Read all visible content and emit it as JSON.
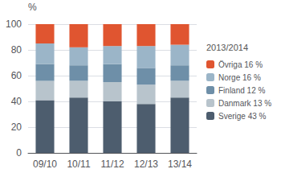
{
  "chart_data": {
    "type": "bar",
    "stacked": true,
    "categories": [
      "09/10",
      "10/11",
      "11/12",
      "12/13",
      "13/14"
    ],
    "series": [
      {
        "name": "Sverige 43 %",
        "color": "#4d5d6e",
        "values": [
          41,
          43,
          40,
          38,
          43
        ]
      },
      {
        "name": "Danmark 13 %",
        "color": "#b8c4cc",
        "values": [
          15,
          13,
          15,
          15,
          13
        ]
      },
      {
        "name": "Finland 12 %",
        "color": "#6e8fa8",
        "values": [
          13,
          12,
          14,
          13,
          12
        ]
      },
      {
        "name": "Norge 16 %",
        "color": "#9bb5c8",
        "values": [
          16,
          14,
          14,
          17,
          16
        ]
      },
      {
        "name": "Övriga 16 %",
        "color": "#e05530",
        "values": [
          15,
          18,
          17,
          17,
          16
        ]
      }
    ],
    "legend_title": "2013/2014",
    "ylabel": "%",
    "ylim": [
      0,
      100
    ],
    "yticks": [
      0,
      20,
      40,
      60,
      80,
      100
    ],
    "grid": true,
    "legend": "right"
  }
}
